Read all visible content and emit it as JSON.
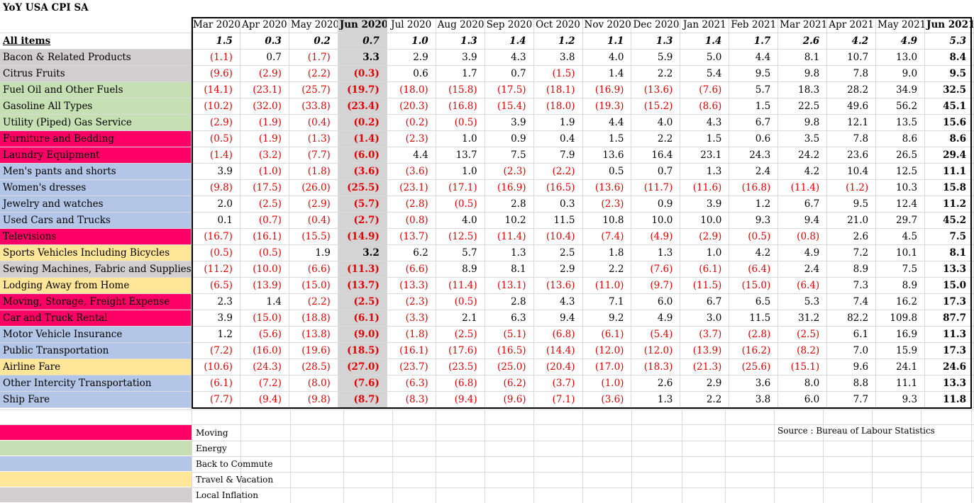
{
  "title": "YoY USA CPI SA",
  "months": [
    "Mar 2020",
    "Apr 2020",
    "May 2020",
    "Jun 2020",
    "Jul 2020",
    "Aug 2020",
    "Sep 2020",
    "Oct 2020",
    "Nov 2020",
    "Dec 2020",
    "Jan 2021",
    "Feb 2021",
    "Mar 2021",
    "Apr 2021",
    "May 2021",
    "Jun 2021"
  ],
  "colors": {
    "moving": "#ff0066",
    "energy": "#c6e0b4",
    "commute": "#b4c6e7",
    "travel": "#ffe699",
    "local": "#d0cece",
    "negative": "#e00000"
  },
  "all_items": {
    "label": "All items",
    "values": [
      "1.5",
      "0.3",
      "0.2",
      "0.7",
      "1.0",
      "1.3",
      "1.4",
      "1.2",
      "1.1",
      "1.3",
      "1.4",
      "1.7",
      "2.6",
      "4.2",
      "4.9",
      "5.3"
    ]
  },
  "rows": [
    {
      "label": "Bacon & Related Products",
      "cat": "local",
      "values": [
        "(1.1)",
        "0.7",
        "(1.7)",
        "3.3",
        "2.9",
        "3.9",
        "4.3",
        "3.8",
        "4.0",
        "5.9",
        "5.0",
        "4.4",
        "8.1",
        "10.7",
        "13.0",
        "8.4"
      ]
    },
    {
      "label": "Citrus Fruits",
      "cat": "local",
      "values": [
        "(9.6)",
        "(2.9)",
        "(2.2)",
        "(0.3)",
        "0.6",
        "1.7",
        "0.7",
        "(1.5)",
        "1.4",
        "2.2",
        "5.4",
        "9.5",
        "9.8",
        "7.8",
        "9.0",
        "9.5"
      ]
    },
    {
      "label": "Fuel Oil and Other Fuels",
      "cat": "energy",
      "values": [
        "(14.1)",
        "(23.1)",
        "(25.7)",
        "(19.7)",
        "(18.0)",
        "(15.8)",
        "(17.5)",
        "(18.1)",
        "(16.9)",
        "(13.6)",
        "(7.6)",
        "5.7",
        "18.3",
        "28.2",
        "34.9",
        "32.5"
      ]
    },
    {
      "label": "Gasoline All Types",
      "cat": "energy",
      "values": [
        "(10.2)",
        "(32.0)",
        "(33.8)",
        "(23.4)",
        "(20.3)",
        "(16.8)",
        "(15.4)",
        "(18.0)",
        "(19.3)",
        "(15.2)",
        "(8.6)",
        "1.5",
        "22.5",
        "49.6",
        "56.2",
        "45.1"
      ]
    },
    {
      "label": "Utility (Piped) Gas Service",
      "cat": "energy",
      "values": [
        "(2.9)",
        "(1.9)",
        "(0.4)",
        "(0.2)",
        "(0.2)",
        "(0.5)",
        "3.9",
        "1.9",
        "4.4",
        "4.0",
        "4.3",
        "6.7",
        "9.8",
        "12.1",
        "13.5",
        "15.6"
      ]
    },
    {
      "label": "Furniture and Bedding",
      "cat": "moving",
      "values": [
        "(0.5)",
        "(1.9)",
        "(1.3)",
        "(1.4)",
        "(2.3)",
        "1.0",
        "0.9",
        "0.4",
        "1.5",
        "2.2",
        "1.5",
        "0.6",
        "3.5",
        "7.8",
        "8.6",
        "8.6"
      ]
    },
    {
      "label": "Laundry Equipment",
      "cat": "moving",
      "values": [
        "(1.4)",
        "(3.2)",
        "(7.7)",
        "(6.0)",
        "4.4",
        "13.7",
        "7.5",
        "7.9",
        "13.6",
        "16.4",
        "23.1",
        "24.3",
        "24.2",
        "23.6",
        "26.5",
        "29.4"
      ]
    },
    {
      "label": "Men's pants and shorts",
      "cat": "commute",
      "values": [
        "3.9",
        "(1.0)",
        "(1.8)",
        "(3.6)",
        "(3.6)",
        "1.0",
        "(2.3)",
        "(2.2)",
        "0.5",
        "0.7",
        "1.3",
        "2.4",
        "4.2",
        "10.4",
        "12.5",
        "11.1"
      ]
    },
    {
      "label": "Women's dresses",
      "cat": "commute",
      "values": [
        "(9.8)",
        "(17.5)",
        "(26.0)",
        "(25.5)",
        "(23.1)",
        "(17.1)",
        "(16.9)",
        "(16.5)",
        "(13.6)",
        "(11.7)",
        "(11.6)",
        "(16.8)",
        "(11.4)",
        "(1.2)",
        "10.3",
        "15.8"
      ]
    },
    {
      "label": "Jewelry and watches",
      "cat": "commute",
      "values": [
        "2.0",
        "(2.5)",
        "(2.9)",
        "(5.7)",
        "(2.8)",
        "(0.5)",
        "2.8",
        "0.3",
        "(2.3)",
        "0.9",
        "3.9",
        "1.2",
        "6.7",
        "9.5",
        "12.4",
        "11.2"
      ]
    },
    {
      "label": "Used Cars and Trucks",
      "cat": "commute",
      "values": [
        "0.1",
        "(0.7)",
        "(0.4)",
        "(2.7)",
        "(0.8)",
        "4.0",
        "10.2",
        "11.5",
        "10.8",
        "10.0",
        "10.0",
        "9.3",
        "9.4",
        "21.0",
        "29.7",
        "45.2"
      ]
    },
    {
      "label": "Televisions",
      "cat": "moving",
      "values": [
        "(16.7)",
        "(16.1)",
        "(15.5)",
        "(14.9)",
        "(13.7)",
        "(12.5)",
        "(11.4)",
        "(10.4)",
        "(7.4)",
        "(4.9)",
        "(2.9)",
        "(0.5)",
        "(0.8)",
        "2.6",
        "4.5",
        "7.5"
      ]
    },
    {
      "label": "Sports Vehicles Including Bicycles",
      "cat": "travel",
      "values": [
        "(0.5)",
        "(0.5)",
        "1.9",
        "3.2",
        "6.2",
        "5.7",
        "1.3",
        "2.5",
        "1.8",
        "1.3",
        "1.0",
        "4.2",
        "4.9",
        "7.2",
        "10.1",
        "8.1"
      ]
    },
    {
      "label": "Sewing Machines, Fabric and Supplies",
      "cat": "local",
      "values": [
        "(11.2)",
        "(10.0)",
        "(6.6)",
        "(11.3)",
        "(6.6)",
        "8.9",
        "8.1",
        "2.9",
        "2.2",
        "(7.6)",
        "(6.1)",
        "(6.4)",
        "2.4",
        "8.9",
        "7.5",
        "13.3"
      ]
    },
    {
      "label": "Lodging Away from Home",
      "cat": "travel",
      "values": [
        "(6.5)",
        "(13.9)",
        "(15.0)",
        "(13.7)",
        "(13.3)",
        "(11.4)",
        "(13.1)",
        "(13.6)",
        "(11.0)",
        "(9.7)",
        "(11.5)",
        "(15.0)",
        "(6.4)",
        "7.3",
        "8.9",
        "15.0"
      ]
    },
    {
      "label": "Moving, Storage, Freight Expense",
      "cat": "moving",
      "values": [
        "2.3",
        "1.4",
        "(2.2)",
        "(2.5)",
        "(2.3)",
        "(0.5)",
        "2.8",
        "4.3",
        "7.1",
        "6.0",
        "6.7",
        "6.5",
        "5.3",
        "7.4",
        "16.2",
        "17.3"
      ]
    },
    {
      "label": "Car and Truck Rental",
      "cat": "moving",
      "values": [
        "3.9",
        "(15.0)",
        "(18.8)",
        "(6.1)",
        "(3.3)",
        "2.1",
        "6.3",
        "9.4",
        "9.2",
        "4.9",
        "3.0",
        "11.5",
        "31.2",
        "82.2",
        "109.8",
        "87.7"
      ]
    },
    {
      "label": "Motor Vehicle Insurance",
      "cat": "commute",
      "values": [
        "1.2",
        "(5.6)",
        "(13.8)",
        "(9.0)",
        "(1.8)",
        "(2.5)",
        "(5.1)",
        "(6.8)",
        "(6.1)",
        "(5.4)",
        "(3.7)",
        "(2.8)",
        "(2.5)",
        "6.1",
        "16.9",
        "11.3"
      ]
    },
    {
      "label": "Public Transportation",
      "cat": "commute",
      "values": [
        "(7.2)",
        "(16.0)",
        "(19.6)",
        "(18.5)",
        "(16.1)",
        "(17.6)",
        "(16.5)",
        "(14.4)",
        "(12.0)",
        "(12.0)",
        "(13.9)",
        "(16.2)",
        "(8.2)",
        "7.0",
        "15.9",
        "17.3"
      ]
    },
    {
      "label": "Airline Fare",
      "cat": "travel",
      "values": [
        "(10.6)",
        "(24.3)",
        "(28.5)",
        "(27.0)",
        "(23.7)",
        "(23.5)",
        "(25.0)",
        "(20.4)",
        "(17.0)",
        "(18.3)",
        "(21.3)",
        "(25.6)",
        "(15.1)",
        "9.6",
        "24.1",
        "24.6"
      ]
    },
    {
      "label": "Other Intercity Transportation",
      "cat": "commute",
      "values": [
        "(6.1)",
        "(7.2)",
        "(8.0)",
        "(7.6)",
        "(6.3)",
        "(6.8)",
        "(6.2)",
        "(3.7)",
        "(1.0)",
        "2.6",
        "2.9",
        "3.6",
        "8.0",
        "8.8",
        "11.1",
        "13.3"
      ]
    },
    {
      "label": "Ship Fare",
      "cat": "commute",
      "values": [
        "(7.7)",
        "(9.4)",
        "(9.8)",
        "(8.7)",
        "(8.3)",
        "(9.4)",
        "(9.6)",
        "(7.1)",
        "(3.6)",
        "1.3",
        "2.2",
        "3.8",
        "6.0",
        "7.7",
        "9.3",
        "11.8"
      ]
    }
  ],
  "legend": [
    {
      "label": "Moving",
      "cat": "moving"
    },
    {
      "label": "Energy",
      "cat": "energy"
    },
    {
      "label": "Back to Commute",
      "cat": "commute"
    },
    {
      "label": "Travel & Vacation",
      "cat": "travel"
    },
    {
      "label": "Local Inflation",
      "cat": "local"
    }
  ],
  "source": "Source : Bureau of Labour Statistics"
}
